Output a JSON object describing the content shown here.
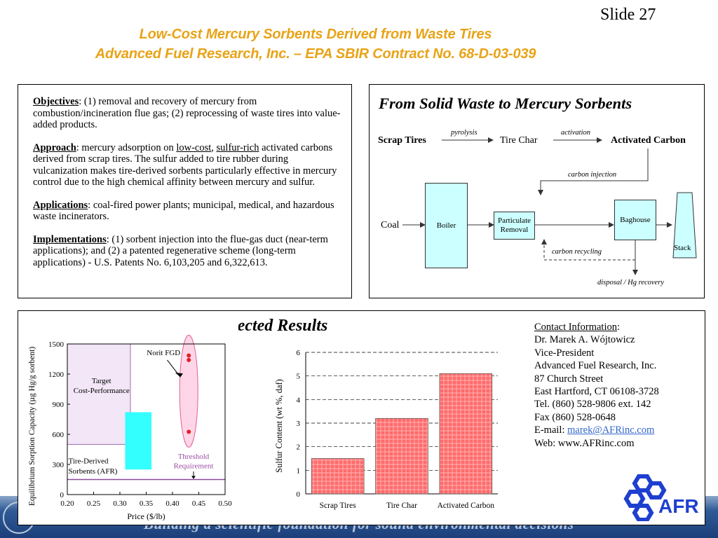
{
  "slide_number": "Slide 27",
  "title": {
    "line1": "Low-Cost Mercury Sorbents Derived from Waste Tires",
    "line2": "Advanced Fuel Research, Inc. – EPA SBIR Contract No. 68-D-03-039"
  },
  "objectives": {
    "objectives_label": "Objectives",
    "objectives_text": ": (1) removal and recovery of mercury from combustion/incineration flue gas; (2) reprocessing of waste tires into value-added products.",
    "approach_label": "Approach",
    "approach_text_1": ":  mercury adsorption on ",
    "approach_link_1": "low-cost",
    "approach_text_2": ", ",
    "approach_link_2": "sulfur-rich",
    "approach_text_3": " activated carbons derived from scrap tires. The sulfur added to tire rubber during vulcanization makes tire-derived sorbents particularly effective in mercury control due to the high chemical affinity between mercury and sulfur.",
    "applications_label": "Applications",
    "applications_text": ": coal-fired power plants; municipal, medical, and hazardous waste incinerators.",
    "implementations_label": "Implementations",
    "implementations_text": ": (1) sorbent injection into the flue-gas duct (near-term applications); and (2) a patented regenerative scheme (long-term applications) - U.S. Patents No. 6,103,205 and 6,322,613."
  },
  "flow": {
    "title": "From Solid Waste to Mercury Sorbents",
    "scrap_tires": "Scrap Tires",
    "pyrolysis": "pyrolysis",
    "tire_char": "Tire Char",
    "activation": "activation",
    "activated_carbon": "Activated Carbon",
    "carbon_injection": "carbon injection",
    "coal": "Coal",
    "boiler": "Boiler",
    "particulate_1": "Particulate",
    "particulate_2": "Removal",
    "baghouse": "Baghouse",
    "stack": "Stack",
    "carbon_recycling": "carbon recycling",
    "disposal": "disposal / Hg recovery"
  },
  "results": {
    "title": "Selected Results"
  },
  "sorption_chart": {
    "type": "scatter",
    "xlabel": "Price  ($/lb)",
    "ylabel": "Equilibrium Sorption Capacity (µg Hg/g sorbent)",
    "xlim": [
      0.2,
      0.5
    ],
    "ylim": [
      0,
      1500
    ],
    "x_ticks": [
      "0.20",
      "0.25",
      "0.30",
      "0.35",
      "0.40",
      "0.45",
      "0.50"
    ],
    "y_ticks": [
      "0",
      "300",
      "600",
      "900",
      "1200",
      "1500"
    ],
    "target_label_1": "Target",
    "target_label_2": "Cost-Performance",
    "norit_label": "Norit FGD",
    "tds_label_1": "Tire-Derived",
    "tds_label_2": "Sorbents (AFR)",
    "threshold_label_1": "Threshold",
    "threshold_label_2": "Requirement",
    "threshold_value": 150,
    "target_region": {
      "x": [
        0.2,
        0.32
      ],
      "y": [
        500,
        1500
      ]
    },
    "tds_region": {
      "x": [
        0.31,
        0.36
      ],
      "y": [
        250,
        820
      ]
    },
    "norit_points": [
      {
        "x": 0.431,
        "y": 1385
      },
      {
        "x": 0.431,
        "y": 1340
      },
      {
        "x": 0.431,
        "y": 625
      }
    ],
    "colors": {
      "target": "#f2e6f7",
      "tds": "#33ffff",
      "norit_ellipse": "#ffd6e8",
      "points": "#e0202a",
      "threshold": "#8a4a9a",
      "threshold_text": "#9b4da6"
    }
  },
  "chart_data": {
    "type": "bar",
    "categories": [
      "Scrap Tires",
      "Tire Char",
      "Activated Carbon"
    ],
    "values": [
      1.5,
      3.2,
      5.1
    ],
    "xlabel": "",
    "ylabel": "Sulfur Content (wt %, daf)",
    "ylim": [
      0,
      6
    ],
    "y_ticks": [
      "0",
      "1",
      "2",
      "3",
      "4",
      "5",
      "6"
    ],
    "grid": true,
    "color": "#ff6b6b"
  },
  "contact": {
    "heading": "Contact Information",
    "colon": ":",
    "name": "Dr. Marek A. Wójtowicz",
    "position": "Vice-President",
    "company": "Advanced Fuel Research, Inc.",
    "street": "87 Church Street",
    "city": "East Hartford, CT 06108-3728",
    "tel": "Tel. (860) 528-9806 ext. 142",
    "fax": "Fax (860) 528-0648",
    "email_label": "E-mail: ",
    "email": "marek@AFRinc.com",
    "web": "Web: www.AFRinc.com"
  },
  "logo_text": "AFR",
  "footer": {
    "slogan": "Building a scientific foundation for sound environmental decisions"
  }
}
